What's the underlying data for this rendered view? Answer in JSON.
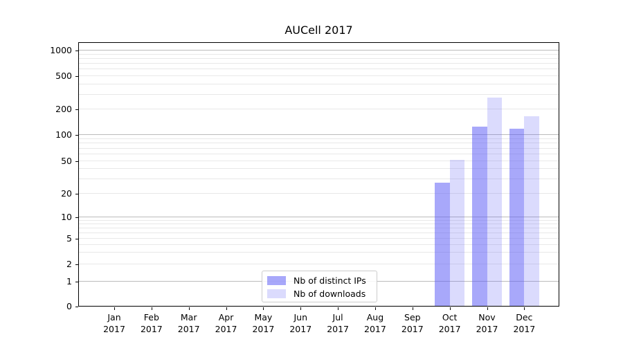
{
  "chart_data": {
    "type": "bar",
    "title": "AUCell 2017",
    "categories": [
      {
        "month": "Jan",
        "year": "2017"
      },
      {
        "month": "Feb",
        "year": "2017"
      },
      {
        "month": "Mar",
        "year": "2017"
      },
      {
        "month": "Apr",
        "year": "2017"
      },
      {
        "month": "May",
        "year": "2017"
      },
      {
        "month": "Jun",
        "year": "2017"
      },
      {
        "month": "Jul",
        "year": "2017"
      },
      {
        "month": "Aug",
        "year": "2017"
      },
      {
        "month": "Sep",
        "year": "2017"
      },
      {
        "month": "Oct",
        "year": "2017"
      },
      {
        "month": "Nov",
        "year": "2017"
      },
      {
        "month": "Dec",
        "year": "2017"
      }
    ],
    "series": [
      {
        "name": "Nb of distinct IPs",
        "color": "rgba(90,90,245,0.53)",
        "values": [
          0,
          0,
          0,
          0,
          0,
          0,
          0,
          0,
          0,
          27,
          123,
          117
        ]
      },
      {
        "name": "Nb of downloads",
        "color": "rgba(90,90,245,0.22)",
        "values": [
          0,
          0,
          0,
          0,
          0,
          0,
          0,
          0,
          0,
          51,
          270,
          163
        ]
      }
    ],
    "y_axis": {
      "scale": "symlog",
      "ticks": [
        0,
        1,
        2,
        5,
        10,
        20,
        50,
        100,
        200,
        500,
        1000
      ],
      "major_gridlines": [
        1,
        10,
        100,
        1000
      ],
      "minor_gridlines": [
        2,
        3,
        4,
        5,
        6,
        7,
        8,
        9,
        20,
        30,
        40,
        50,
        60,
        70,
        80,
        90,
        200,
        300,
        400,
        500,
        600,
        700,
        800,
        900
      ],
      "top_value": 1500
    },
    "legend_position": "lower center inside",
    "grid": true,
    "colors": {
      "grid_major": "#bbbbbb",
      "grid_minor": "#e8e8e8",
      "spine": "#000000",
      "text": "#000000"
    }
  }
}
